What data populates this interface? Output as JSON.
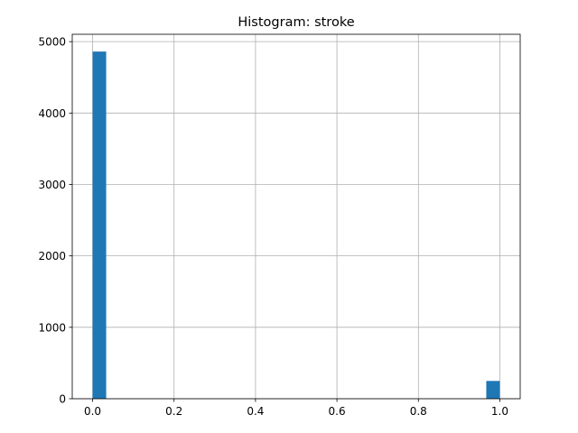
{
  "chart_data": {
    "type": "bar",
    "title": "Histogram: stroke",
    "xlabel": "",
    "ylabel": "",
    "xlim": [
      -0.05,
      1.05
    ],
    "ylim": [
      0,
      5103
    ],
    "x_ticks": [
      0.0,
      0.2,
      0.4,
      0.6,
      0.8,
      1.0
    ],
    "x_tick_labels": [
      "0.0",
      "0.2",
      "0.4",
      "0.6",
      "0.8",
      "1.0"
    ],
    "y_ticks": [
      0,
      1000,
      2000,
      3000,
      4000,
      5000
    ],
    "y_tick_labels": [
      "0",
      "1000",
      "2000",
      "3000",
      "4000",
      "5000"
    ],
    "grid": true,
    "bin_count": 30,
    "bins": [
      {
        "x0": 0.0,
        "x1": 0.0333,
        "value": 4861
      },
      {
        "x0": 0.9667,
        "x1": 1.0,
        "value": 249
      }
    ],
    "bar_color": "#1f77b4"
  }
}
